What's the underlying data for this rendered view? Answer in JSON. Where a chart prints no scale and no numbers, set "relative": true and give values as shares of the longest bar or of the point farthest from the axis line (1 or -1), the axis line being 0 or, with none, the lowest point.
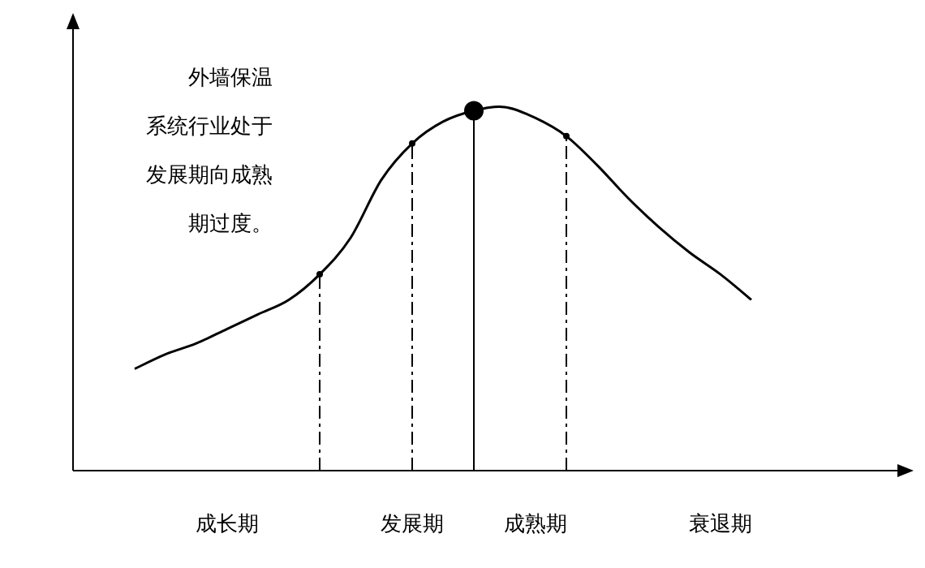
{
  "chart_data": {
    "type": "line",
    "relative": true,
    "marker": "none",
    "line_style": "solid",
    "categories": [
      null,
      null,
      null,
      "成长期",
      null,
      null,
      null,
      null,
      null,
      "发展期",
      null,
      null,
      null,
      "成熟期",
      null,
      null,
      null,
      null,
      null,
      "衰退期",
      null
    ],
    "series": [
      {
        "color": "#000000",
        "values": [
          0.28,
          0.32,
          0.35,
          0.39,
          0.43,
          0.47,
          0.54,
          0.64,
          0.8,
          0.9,
          0.96,
          0.99,
          1.0,
          0.97,
          0.92,
          0.84,
          0.75,
          0.67,
          0.6,
          0.54,
          0.47
        ]
      },
      {
        "type": "lollipop",
        "marker": "circle",
        "line_style": "solid",
        "color": "#000000",
        "values": [
          null,
          null,
          null,
          null,
          null,
          null,
          null,
          null,
          null,
          null,
          null,
          0.99,
          null,
          null,
          null,
          null,
          null,
          null,
          null,
          null,
          null
        ]
      },
      {
        "type": "lollipop",
        "marker": "circle",
        "line_style": "dashed",
        "color": "#000000",
        "values": [
          null,
          null,
          null,
          null,
          null,
          null,
          0.54,
          null,
          null,
          0.9,
          null,
          null,
          null,
          null,
          0.92,
          null,
          null,
          null,
          null,
          null,
          null
        ]
      }
    ],
    "annotations": [
      "外墙保温系统行业处于发展期向成熟期过度。"
    ]
  }
}
